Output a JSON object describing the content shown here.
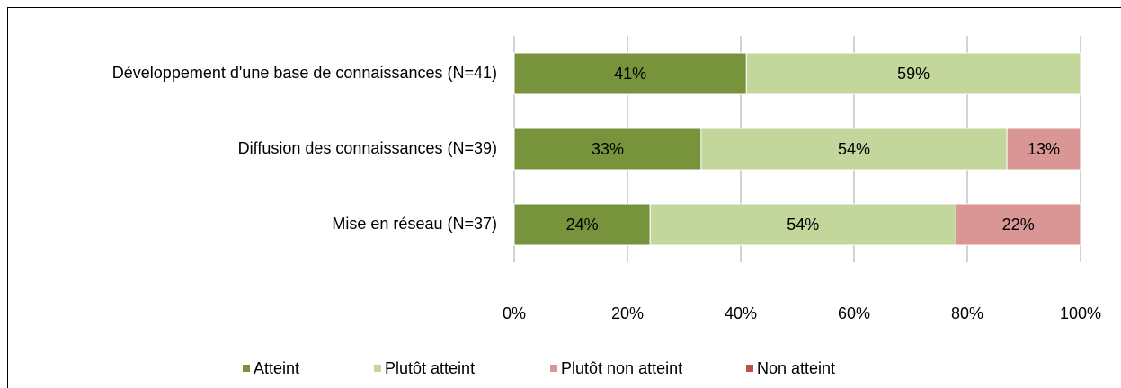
{
  "chart_data": {
    "type": "stacked-barh",
    "categories": [
      "Développement d'une base de connaissances (N=41)",
      "Diffusion des connaissances (N=39)",
      "Mise en réseau (N=37)"
    ],
    "series": [
      {
        "name": "Atteint",
        "color": "#77933c",
        "values": [
          41,
          33,
          24
        ],
        "value_labels": [
          "41%",
          "33%",
          "24%"
        ]
      },
      {
        "name": "Plutôt atteint",
        "color": "#c3d69b",
        "values": [
          59,
          54,
          54
        ],
        "value_labels": [
          "59%",
          "54%",
          "54%"
        ]
      },
      {
        "name": "Plutôt non atteint",
        "color": "#d99694",
        "values": [
          null,
          13,
          22
        ],
        "value_labels": [
          null,
          "13%",
          "22%"
        ]
      },
      {
        "name": "Non atteint",
        "color": "#c0504d",
        "values": [
          null,
          null,
          null
        ],
        "value_labels": [
          null,
          null,
          null
        ]
      }
    ],
    "xlim": [
      0,
      100
    ],
    "xticks": [
      {
        "value": 0,
        "label": "0%"
      },
      {
        "value": 20,
        "label": "20%"
      },
      {
        "value": 40,
        "label": "40%"
      },
      {
        "value": 60,
        "label": "60%"
      },
      {
        "value": 80,
        "label": "80%"
      },
      {
        "value": 100,
        "label": "100%"
      }
    ],
    "grid": true,
    "legend": "bottom"
  }
}
